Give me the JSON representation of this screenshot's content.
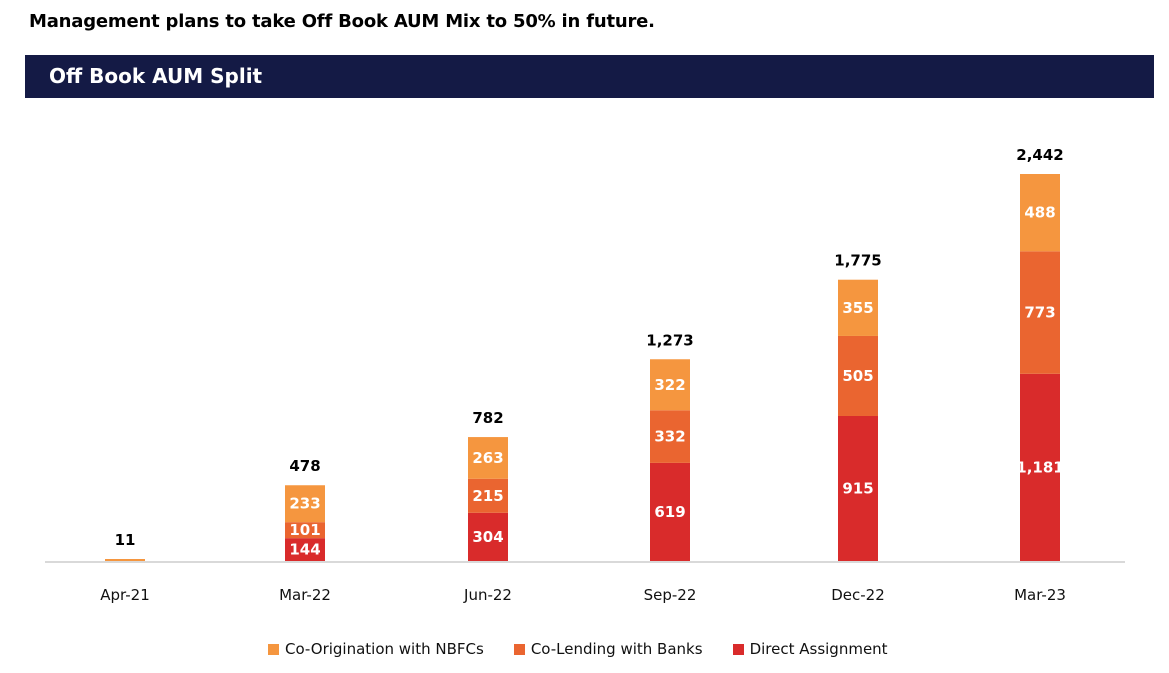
{
  "headline": "Management plans to take Off Book AUM Mix to 50% in future.",
  "section_title": "Off Book AUM Split",
  "chart_data": {
    "type": "bar",
    "stacked": true,
    "title": "Off Book AUM Split",
    "xlabel": "",
    "ylabel": "",
    "categories": [
      "Apr-21",
      "Mar-22",
      "Jun-22",
      "Sep-22",
      "Dec-22",
      "Mar-23"
    ],
    "series": [
      {
        "name": "Direct Assignment",
        "color": "#d92b2b",
        "values": [
          0,
          144,
          304,
          619,
          915,
          1181
        ],
        "labels": [
          "",
          "144",
          "304",
          "619",
          "915",
          "1,181"
        ]
      },
      {
        "name": "Co-Lending with Banks",
        "color": "#ea6530",
        "values": [
          0,
          101,
          215,
          332,
          505,
          773
        ],
        "labels": [
          "",
          "101",
          "215",
          "332",
          "505",
          "773"
        ]
      },
      {
        "name": "Co-Origination with NBFCs",
        "color": "#f5963f",
        "values": [
          11,
          233,
          263,
          322,
          355,
          488
        ],
        "labels": [
          "",
          "233",
          "263",
          "322",
          "355",
          "488"
        ]
      }
    ],
    "totals": [
      11,
      478,
      782,
      1273,
      1775,
      2442
    ],
    "total_labels": [
      "11",
      "478",
      "782",
      "1,273",
      "1,775",
      "2,442"
    ],
    "ylim": [
      0,
      2442
    ],
    "grid": false,
    "legend_position": "bottom",
    "legend_order": [
      "Co-Origination with NBFCs",
      "Co-Lending with Banks",
      "Direct Assignment"
    ]
  }
}
